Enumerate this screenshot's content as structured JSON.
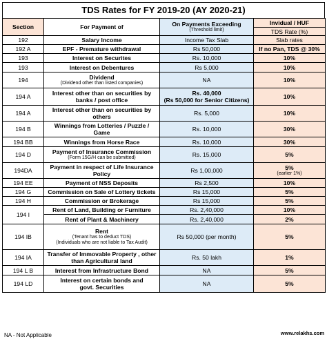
{
  "title": "TDS Rates for FY 2019-20 (AY 2020-21)",
  "headers": {
    "section": "Section",
    "payment": "For Payment of",
    "threshold": "On Payments Exceeding",
    "threshold_sub": "(Threshold limit)",
    "individual": "Invidual / HUF",
    "rate": "TDS Rate (%)"
  },
  "rows": [
    {
      "section": "192",
      "payment": "Salary Income",
      "payment_sub": "",
      "threshold": "Income Tax Slab",
      "threshold_sub": "",
      "rate": "Slab rates",
      "rate_sub": ""
    },
    {
      "section": "192 A",
      "payment": "EPF - Premature withdrawal",
      "payment_sub": "",
      "threshold": "Rs 50,000",
      "threshold_sub": "",
      "rate": "If no Pan, TDS @ 30%",
      "rate_sub": ""
    },
    {
      "section": "193",
      "payment": "Interest on Securites",
      "payment_sub": "",
      "threshold": "Rs. 10,000",
      "threshold_sub": "",
      "rate": "10%",
      "rate_sub": ""
    },
    {
      "section": "193",
      "payment": "Interest on Debentures",
      "payment_sub": "",
      "threshold": "Rs 5,000",
      "threshold_sub": "",
      "rate": "10%",
      "rate_sub": ""
    },
    {
      "section": "194",
      "payment": "Dividend",
      "payment_sub": "(Dividend other than listed companies)",
      "threshold": "NA",
      "threshold_sub": "",
      "rate": "10%",
      "rate_sub": ""
    },
    {
      "section": "194 A",
      "payment": "Interest other than on securities by",
      "payment_sub": "banks / post office",
      "threshold": "Rs. 40,000",
      "threshold_sub": "(Rs 50,000 for Senior Citizens)",
      "rate": "10%",
      "rate_sub": ""
    },
    {
      "section": "194 A",
      "payment": "Interest other than on securities by",
      "payment_sub": "others",
      "threshold": "Rs. 5,000",
      "threshold_sub": "",
      "rate": "10%",
      "rate_sub": ""
    },
    {
      "section": "194 B",
      "payment": "Winnings from Lotteries / Puzzle /",
      "payment_sub": "Game",
      "threshold": "Rs. 10,000",
      "threshold_sub": "",
      "rate": "30%",
      "rate_sub": ""
    },
    {
      "section": "194 BB",
      "payment": "Winnings from Horse Race",
      "payment_sub": "",
      "threshold": "Rs. 10,000",
      "threshold_sub": "",
      "rate": "30%",
      "rate_sub": ""
    },
    {
      "section": "194 D",
      "payment": "Payment of Insurance Commission",
      "payment_sub": "(Form 15G/H can be submitted)",
      "threshold": "Rs. 15,000",
      "threshold_sub": "",
      "rate": "5%",
      "rate_sub": ""
    },
    {
      "section": "194DA",
      "payment": "Payment in respect of Life Insurance",
      "payment_sub": "Policy",
      "threshold": "Rs 1,00,000",
      "threshold_sub": "",
      "rate": "5%",
      "rate_sub": "(earlier 1%)"
    },
    {
      "section": "194 EE",
      "payment": "Payment of NSS Deposits",
      "payment_sub": "",
      "threshold": "Rs 2,500",
      "threshold_sub": "",
      "rate": "10%",
      "rate_sub": ""
    },
    {
      "section": "194 G",
      "payment": "Commission on Sale of Lottery tickets",
      "payment_sub": "",
      "threshold": "Rs 15,000",
      "threshold_sub": "",
      "rate": "5%",
      "rate_sub": ""
    },
    {
      "section": "194 H",
      "payment": "Commission or Brokerage",
      "payment_sub": "",
      "threshold": "Rs 15,000",
      "threshold_sub": "",
      "rate": "5%",
      "rate_sub": ""
    },
    {
      "section": "194 I",
      "payment": "Rent of Land, Building or Furniture",
      "payment_sub": "",
      "threshold": "Rs. 2,40,000",
      "threshold_sub": "",
      "rate": "10%",
      "rate_sub": ""
    },
    {
      "section": "",
      "payment": "Rent of Plant & Machinery",
      "payment_sub": "",
      "threshold": "Rs. 2,40,000",
      "threshold_sub": "",
      "rate": "2%",
      "rate_sub": ""
    },
    {
      "section": "194 IB",
      "payment": "Rent",
      "payment_sub": "(Tenant has to deduct TDS)",
      "payment_sub2": "(Individuals who are not liable to Tax Audit)",
      "threshold": "Rs 50,000 (per month)",
      "threshold_sub": "",
      "rate": "5%",
      "rate_sub": ""
    },
    {
      "section": "194 IA",
      "payment": "Transfer of Immovable Property , other",
      "payment_sub": "than Agricultural land",
      "threshold": "Rs. 50 lakh",
      "threshold_sub": "",
      "rate": "1%",
      "rate_sub": ""
    },
    {
      "section": "194 L B",
      "payment": "Interest from Infrastructure Bond",
      "payment_sub": "",
      "threshold": "NA",
      "threshold_sub": "",
      "rate": "5%",
      "rate_sub": ""
    },
    {
      "section": "194 LD",
      "payment": "Interest on certain bonds and",
      "payment_sub": "govt. Securities",
      "threshold": "NA",
      "threshold_sub": "",
      "rate": "5%",
      "rate_sub": ""
    }
  ],
  "footer": {
    "note": "NA - Not Applicable",
    "site": "www.relakhs.com"
  },
  "colors": {
    "threshold_bg": "#ddebf7",
    "rate_bg": "#fce4d6"
  }
}
